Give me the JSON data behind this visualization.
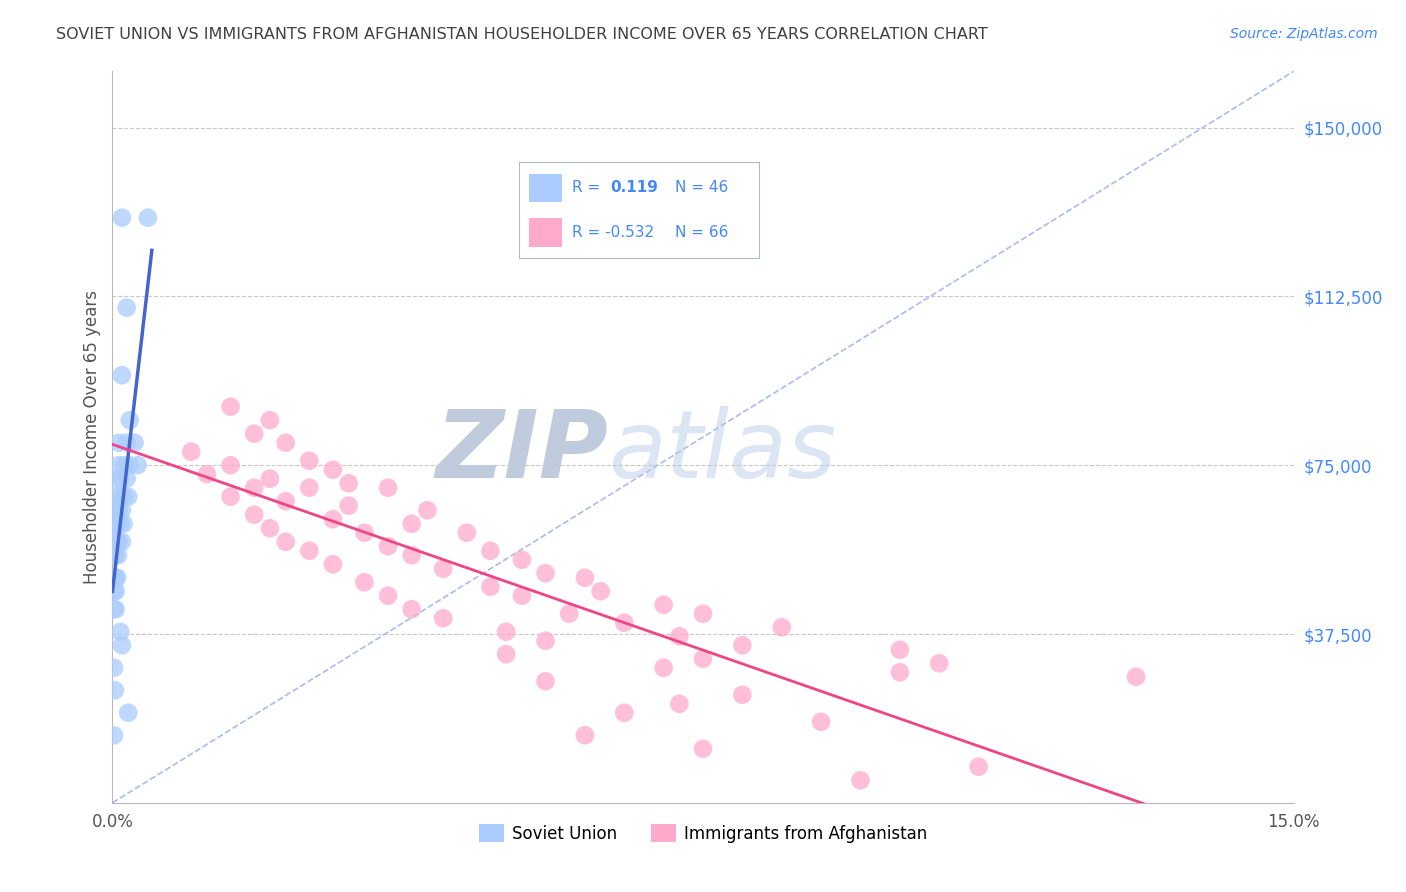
{
  "title": "SOVIET UNION VS IMMIGRANTS FROM AFGHANISTAN HOUSEHOLDER INCOME OVER 65 YEARS CORRELATION CHART",
  "source": "Source: ZipAtlas.com",
  "ylabel": "Householder Income Over 65 years",
  "xmin": 0.0,
  "xmax": 15.0,
  "ymin": 0,
  "ymax": 162500,
  "yticks": [
    37500,
    75000,
    112500,
    150000
  ],
  "ytick_labels": [
    "$37,500",
    "$75,000",
    "$112,500",
    "$150,000"
  ],
  "r_soviet": 0.119,
  "n_soviet": 46,
  "r_afghan": -0.532,
  "n_afghan": 66,
  "background_color": "#ffffff",
  "grid_color": "#c8c8c8",
  "title_color": "#404040",
  "axis_label_color": "#4488ff",
  "soviet_color": "#aaccff",
  "afghan_color": "#ffaacc",
  "soviet_line_color": "#4466cc",
  "afghan_line_color": "#ee4488",
  "dashed_line_color": "#aabbee",
  "soviet_scatter_x": [
    0.12,
    0.45,
    0.18,
    0.12,
    0.22,
    0.08,
    0.18,
    0.28,
    0.08,
    0.15,
    0.22,
    0.32,
    0.05,
    0.1,
    0.18,
    0.05,
    0.1,
    0.15,
    0.2,
    0.05,
    0.08,
    0.12,
    0.03,
    0.06,
    0.1,
    0.14,
    0.03,
    0.05,
    0.08,
    0.12,
    0.02,
    0.04,
    0.07,
    0.02,
    0.04,
    0.06,
    0.02,
    0.04,
    0.02,
    0.04,
    0.1,
    0.12,
    0.02,
    0.03,
    0.2,
    0.02
  ],
  "soviet_scatter_y": [
    130000,
    130000,
    110000,
    95000,
    85000,
    80000,
    80000,
    80000,
    75000,
    75000,
    75000,
    75000,
    72000,
    72000,
    72000,
    68000,
    68000,
    68000,
    68000,
    65000,
    65000,
    65000,
    62000,
    62000,
    62000,
    62000,
    58000,
    58000,
    58000,
    58000,
    55000,
    55000,
    55000,
    50000,
    50000,
    50000,
    47000,
    47000,
    43000,
    43000,
    38000,
    35000,
    30000,
    25000,
    20000,
    15000
  ],
  "afghan_scatter_x": [
    1.5,
    2.0,
    1.8,
    2.2,
    1.0,
    2.5,
    1.5,
    2.8,
    1.2,
    2.0,
    3.0,
    1.8,
    2.5,
    3.5,
    1.5,
    2.2,
    3.0,
    4.0,
    1.8,
    2.8,
    3.8,
    2.0,
    3.2,
    4.5,
    2.2,
    3.5,
    4.8,
    2.5,
    3.8,
    5.2,
    2.8,
    4.2,
    5.5,
    6.0,
    3.2,
    4.8,
    6.2,
    3.5,
    5.2,
    7.0,
    3.8,
    5.8,
    7.5,
    4.2,
    6.5,
    8.5,
    5.0,
    7.2,
    5.5,
    8.0,
    10.0,
    5.0,
    7.5,
    10.5,
    7.0,
    10.0,
    13.0,
    5.5,
    8.0,
    7.2,
    6.5,
    9.0,
    6.0,
    7.5,
    11.0,
    9.5
  ],
  "afghan_scatter_y": [
    88000,
    85000,
    82000,
    80000,
    78000,
    76000,
    75000,
    74000,
    73000,
    72000,
    71000,
    70000,
    70000,
    70000,
    68000,
    67000,
    66000,
    65000,
    64000,
    63000,
    62000,
    61000,
    60000,
    60000,
    58000,
    57000,
    56000,
    56000,
    55000,
    54000,
    53000,
    52000,
    51000,
    50000,
    49000,
    48000,
    47000,
    46000,
    46000,
    44000,
    43000,
    42000,
    42000,
    41000,
    40000,
    39000,
    38000,
    37000,
    36000,
    35000,
    34000,
    33000,
    32000,
    31000,
    30000,
    29000,
    28000,
    27000,
    24000,
    22000,
    20000,
    18000,
    15000,
    12000,
    8000,
    5000
  ]
}
